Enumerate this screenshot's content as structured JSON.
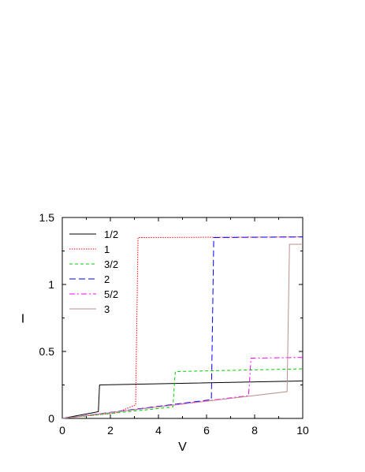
{
  "chart_data": {
    "type": "line",
    "title": "",
    "xlabel": "V",
    "ylabel": "I",
    "xlim": [
      0,
      10
    ],
    "ylim": [
      0,
      1.5
    ],
    "xticks": [
      0,
      2,
      4,
      6,
      8,
      10
    ],
    "xtick_labels": [
      "0",
      "2",
      "4",
      "6",
      "8",
      "10"
    ],
    "yticks": [
      0,
      0.5,
      1,
      1.5
    ],
    "ytick_labels": [
      "0",
      "0.5",
      "1",
      "1.5"
    ],
    "grid": false,
    "legend_position": "top-left",
    "series": [
      {
        "name": "1/2",
        "color": "#000000",
        "dash": "solid",
        "x": [
          0,
          1.5,
          1.55,
          10
        ],
        "y": [
          0,
          0.05,
          0.25,
          0.28
        ]
      },
      {
        "name": "1",
        "color": "#ff0000",
        "dash": "dotted",
        "x": [
          0,
          2.2,
          3.05,
          3.15,
          10
        ],
        "y": [
          0,
          0.04,
          0.1,
          1.35,
          1.355
        ]
      },
      {
        "name": "3/2",
        "color": "#00cc00",
        "dash": "dashed",
        "x": [
          0,
          4.6,
          4.7,
          10
        ],
        "y": [
          0,
          0.085,
          0.35,
          0.37
        ]
      },
      {
        "name": "2",
        "color": "#0000ff",
        "dash": "longdash",
        "x": [
          0,
          6.2,
          6.3,
          10
        ],
        "y": [
          0,
          0.14,
          1.35,
          1.355
        ]
      },
      {
        "name": "5/2",
        "color": "#ff00ff",
        "dash": "dashdot",
        "x": [
          0,
          7.75,
          7.85,
          10
        ],
        "y": [
          0,
          0.17,
          0.45,
          0.455
        ]
      },
      {
        "name": "3",
        "color": "#bc8f8f",
        "dash": "solid",
        "x": [
          0,
          9.35,
          9.45,
          10
        ],
        "y": [
          0,
          0.2,
          1.3,
          1.3
        ]
      }
    ]
  }
}
